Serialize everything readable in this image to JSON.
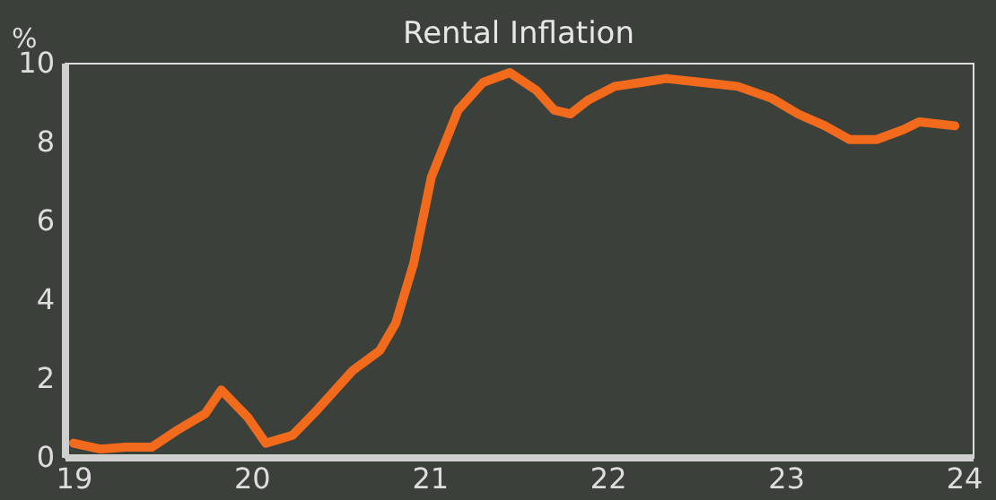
{
  "chart_data": {
    "type": "line",
    "title": "Rental Inflation",
    "ylabel": "%",
    "x": [
      2019.0,
      2019.15,
      2019.29,
      2019.44,
      2019.59,
      2019.74,
      2019.83,
      2019.98,
      2020.08,
      2020.23,
      2020.37,
      2020.57,
      2020.72,
      2020.81,
      2020.91,
      2021.01,
      2021.16,
      2021.3,
      2021.45,
      2021.6,
      2021.7,
      2021.79,
      2021.89,
      2022.04,
      2022.19,
      2022.33,
      2022.53,
      2022.73,
      2022.92,
      2023.07,
      2023.22,
      2023.36,
      2023.51,
      2023.66,
      2023.75,
      2023.95
    ],
    "series": [
      {
        "color": "#f26a1b",
        "values": [
          0.35,
          0.2,
          0.25,
          0.25,
          0.7,
          1.1,
          1.7,
          1.0,
          0.35,
          0.55,
          1.2,
          2.2,
          2.7,
          3.4,
          4.9,
          7.1,
          8.8,
          9.5,
          9.75,
          9.3,
          8.8,
          8.7,
          9.05,
          9.4,
          9.5,
          9.6,
          9.5,
          9.4,
          9.1,
          8.7,
          8.4,
          8.05,
          8.05,
          8.3,
          8.5,
          8.4
        ]
      }
    ],
    "xlim": [
      2018.95,
      2024.05
    ],
    "xticks": [
      {
        "value": 2019,
        "label": "19"
      },
      {
        "value": 2020,
        "label": "20"
      },
      {
        "value": 2021,
        "label": "21"
      },
      {
        "value": 2022,
        "label": "22"
      },
      {
        "value": 2023,
        "label": "23"
      },
      {
        "value": 2024,
        "label": "24"
      }
    ],
    "ylim": [
      0,
      10
    ],
    "yticks": [
      0,
      2,
      4,
      6,
      8,
      10
    ],
    "grid": false,
    "marker": "none",
    "line_style": "solid"
  }
}
